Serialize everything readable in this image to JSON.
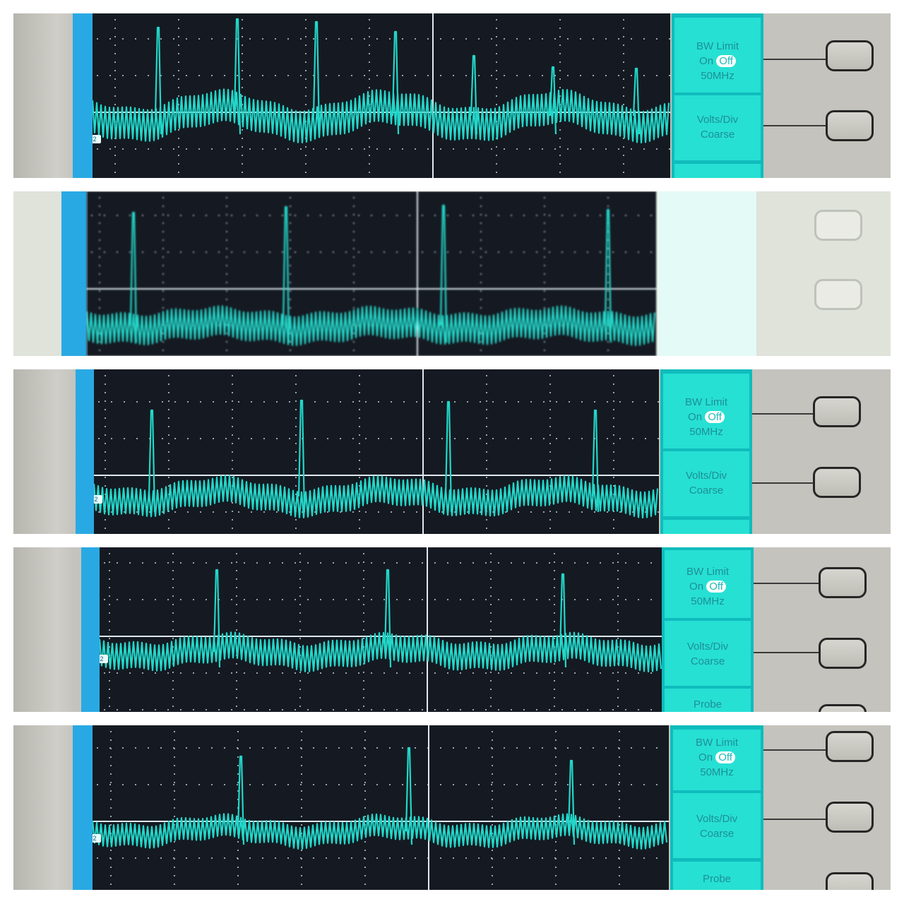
{
  "trace_color": "#22d7c9",
  "channel_marker": "2",
  "panels": [
    {
      "id": "p1",
      "softkeys": [
        {
          "lines": [
            "BW Limit",
            "On|Off",
            "50MHz"
          ]
        },
        {
          "lines": [
            "Volts/Div",
            "Coarse"
          ]
        },
        {
          "lines": [
            ""
          ]
        }
      ]
    },
    {
      "id": "p2",
      "softkeys": []
    },
    {
      "id": "p3",
      "softkeys": [
        {
          "lines": [
            "BW Limit",
            "On|Off",
            "50MHz"
          ]
        },
        {
          "lines": [
            "Volts/Div",
            "Coarse"
          ]
        },
        {
          "lines": [
            ""
          ]
        }
      ]
    },
    {
      "id": "p4",
      "softkeys": [
        {
          "lines": [
            "BW Limit",
            "On|Off",
            "50MHz"
          ]
        },
        {
          "lines": [
            "Volts/Div",
            "Coarse"
          ]
        },
        {
          "lines": [
            "Probe"
          ]
        }
      ]
    },
    {
      "id": "p5",
      "softkeys": [
        {
          "lines": [
            "BW Limit",
            "On|Off",
            "50MHz"
          ]
        },
        {
          "lines": [
            "Volts/Div",
            "Coarse"
          ]
        },
        {
          "lines": [
            "Probe"
          ]
        }
      ]
    }
  ]
}
